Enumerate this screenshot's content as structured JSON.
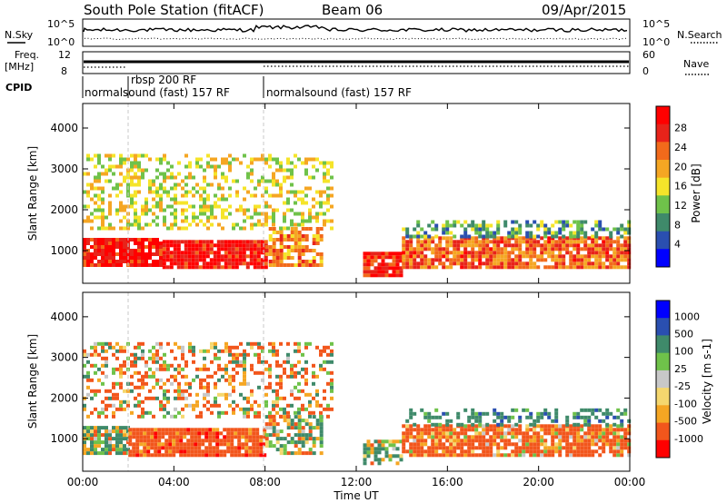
{
  "header": {
    "station": "South Pole Station (fitACF)",
    "beam": "Beam 06",
    "date": "09/Apr/2015"
  },
  "noise_panel": {
    "left_label": "N.Sky",
    "right_label": "N.Search",
    "left_ticks": [
      "10^5",
      "10^0"
    ],
    "right_ticks": [
      "10^5",
      "10^0"
    ]
  },
  "freq_panel": {
    "left_label_line1": "Freq.",
    "left_label_line2": "[MHz]",
    "left_ticks": [
      "12",
      "8"
    ],
    "right_label": "Nave",
    "right_ticks": [
      "60",
      "0"
    ]
  },
  "cpid_panel": {
    "label": "CPID",
    "modes": [
      {
        "text": "normalsound (fast) 157 RF"
      },
      {
        "text": "rbsp 200 RF"
      },
      {
        "text": "normalsound (fast) 157 RF"
      }
    ]
  },
  "time_axis": {
    "ticks": [
      "00:00",
      "04:00",
      "08:00",
      "12:00",
      "16:00",
      "20:00",
      "00:00"
    ],
    "label": "Time UT"
  },
  "range_axis": {
    "label": "Slant Range [km]",
    "ticks": [
      "1000",
      "2000",
      "3000",
      "4000"
    ]
  },
  "colors": {
    "power": [
      "#0000ff",
      "#2a4fb0",
      "#3f8a6a",
      "#6fc24a",
      "#f5e42a",
      "#f5a623",
      "#f26a1b",
      "#e8231a",
      "#ff0000"
    ],
    "velocity": [
      "#ff0000",
      "#f2561c",
      "#f5a623",
      "#f5d76e",
      "#c8c8c8",
      "#6fc24a",
      "#3f8a6a",
      "#2a4fb0",
      "#0000ff"
    ]
  },
  "chart_data": [
    {
      "type": "heatmap",
      "name": "power",
      "xlabel": "Time UT",
      "ylabel": "Slant Range [km]",
      "x_ticks": [
        "00:00",
        "04:00",
        "08:00",
        "12:00",
        "16:00",
        "20:00",
        "00:00"
      ],
      "y_ticks": [
        1000,
        2000,
        3000,
        4000
      ],
      "xlim_hours": [
        0,
        24
      ],
      "ylim_km": [
        200,
        4600
      ],
      "colorbar": {
        "label": "Power [dB]",
        "ticks": [
          "4",
          "8",
          "12",
          "16",
          "20",
          "24",
          "28"
        ],
        "range": [
          0,
          30
        ]
      },
      "layers": [
        {
          "t0": 0,
          "t1": 3.5,
          "r0": 600,
          "r1": 1250,
          "level": 27,
          "density": 0.92
        },
        {
          "t0": 3.5,
          "t1": 8,
          "r0": 550,
          "r1": 1250,
          "level": 27,
          "density": 0.92
        },
        {
          "t0": 8,
          "t1": 10.5,
          "r0": 600,
          "r1": 1500,
          "level": 20,
          "density": 0.7
        },
        {
          "t0": 12.3,
          "t1": 14,
          "r0": 350,
          "r1": 900,
          "level": 26,
          "density": 0.9
        },
        {
          "t0": 14,
          "t1": 24,
          "r0": 550,
          "r1": 1300,
          "level": 22,
          "density": 0.85
        },
        {
          "t0": 0,
          "t1": 11,
          "r0": 1500,
          "r1": 3300,
          "level": 15,
          "density": 0.4
        },
        {
          "t0": 14,
          "t1": 24,
          "r0": 1300,
          "r1": 1700,
          "level": 10,
          "density": 0.5
        }
      ]
    },
    {
      "type": "heatmap",
      "name": "velocity",
      "xlabel": "Time UT",
      "ylabel": "Slant Range [km]",
      "x_ticks": [
        "00:00",
        "04:00",
        "08:00",
        "12:00",
        "16:00",
        "20:00",
        "00:00"
      ],
      "y_ticks": [
        1000,
        2000,
        3000,
        4000
      ],
      "xlim_hours": [
        0,
        24
      ],
      "ylim_km": [
        200,
        4600
      ],
      "colorbar": {
        "label": "Velocity [m s-1]",
        "ticks": [
          "1000",
          "500",
          "100",
          "25",
          "-25",
          "-100",
          "-500",
          "-1000"
        ],
        "range": [
          -1000,
          1000
        ]
      },
      "layers": [
        {
          "t0": 0,
          "t1": 2,
          "r0": 600,
          "r1": 1250,
          "level": 100,
          "density": 0.9
        },
        {
          "t0": 2,
          "t1": 8,
          "r0": 550,
          "r1": 1250,
          "level": -300,
          "density": 0.9
        },
        {
          "t0": 8,
          "t1": 10.5,
          "r0": 600,
          "r1": 1500,
          "level": 50,
          "density": 0.6
        },
        {
          "t0": 12.3,
          "t1": 14,
          "r0": 350,
          "r1": 900,
          "level": 100,
          "density": 0.7
        },
        {
          "t0": 14,
          "t1": 24,
          "r0": 550,
          "r1": 1300,
          "level": -200,
          "density": 0.85
        },
        {
          "t0": 0,
          "t1": 11,
          "r0": 1500,
          "r1": 3300,
          "level": -80,
          "density": 0.4
        },
        {
          "t0": 14,
          "t1": 24,
          "r0": 1300,
          "r1": 1700,
          "level": 300,
          "density": 0.4
        }
      ]
    }
  ]
}
